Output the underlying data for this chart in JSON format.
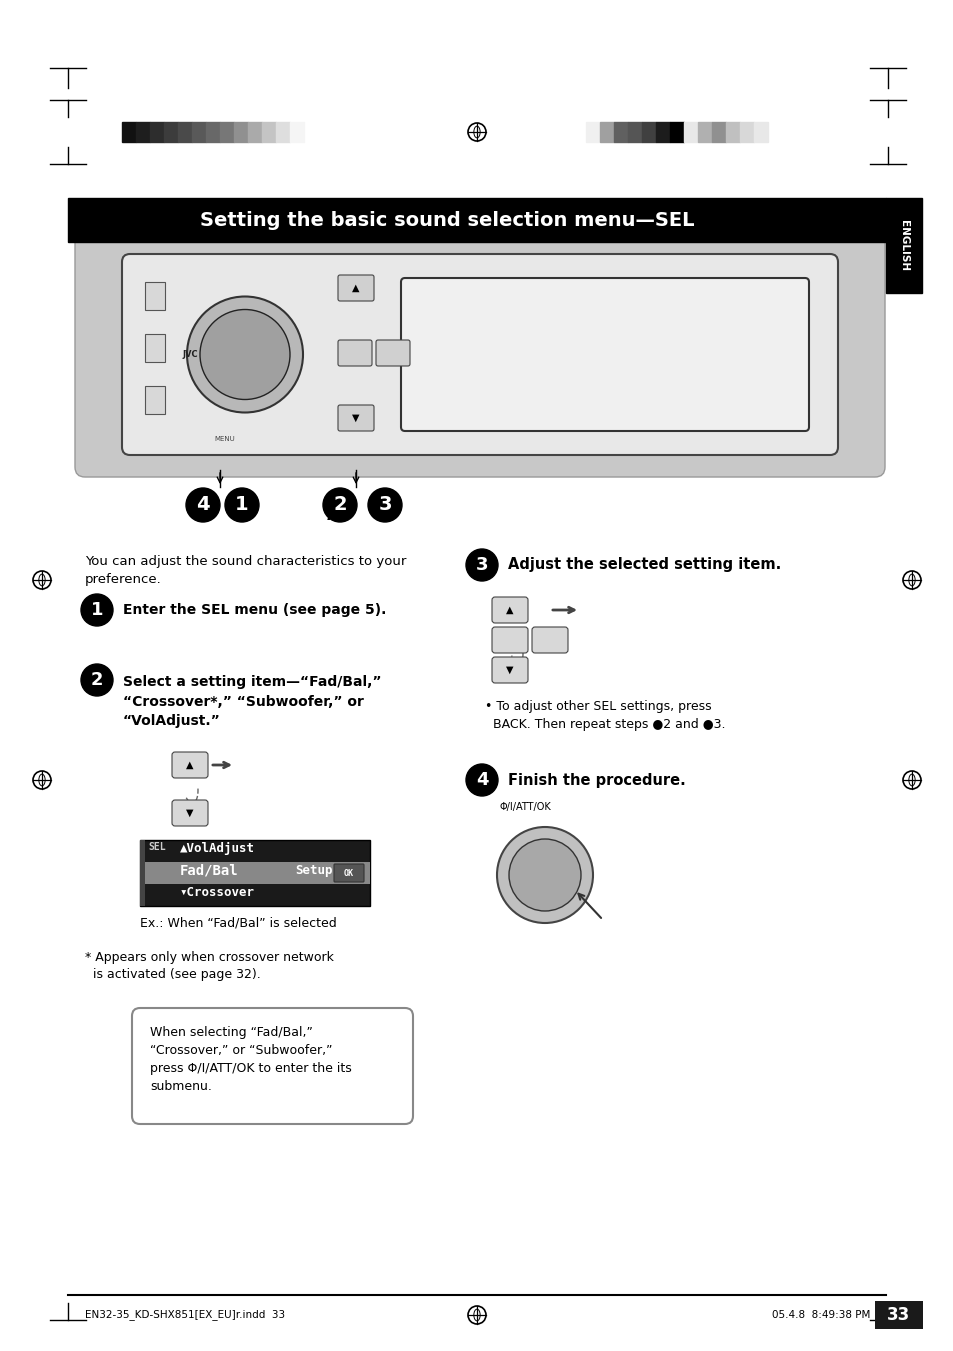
{
  "title": "Setting the basic sound selection menu—SEL",
  "title_fontsize": 14,
  "background_color": "#ffffff",
  "header_bar_color": "#000000",
  "header_text_color": "#ffffff",
  "english_tab_text": "ENGLISH",
  "step1_text": "Enter the SEL menu (see page 5).",
  "step2_text": "Select a setting item—“Fad/Bal,”\n“Crossover*,” “Subwoofer,” or\n“VolAdjust.”",
  "step3_header": "Adjust the selected setting item.",
  "step3_note": "• To adjust other SEL settings, press\n  BACK. Then repeat steps ●2 and ●3.",
  "step4_header": "Finish the procedure.",
  "intro_text": "You can adjust the sound characteristics to your\npreference.",
  "ex_text": "Ex.: When “Fad/Bal” is selected",
  "asterisk_text": "* Appears only when crossover network\n  is activated (see page 32).",
  "box_text": "When selecting “Fad/Bal,”\n“Crossover,” or “Subwoofer,”\npress Φ/I/ATT/OK to enter the its\nsubmenu.",
  "display_line1": "▲VolAdjust",
  "display_line2": "Fad/Bal",
  "display_setup": "Setup",
  "display_line3": "▾Crossover",
  "footer_left": "EN32-35_KD-SHX851[EX_EU]r.indd  33",
  "footer_right": "05.4.8  8:49:38 PM",
  "page_number": "33",
  "bar_colors_left": [
    "#111111",
    "#1e1e1e",
    "#2d2d2d",
    "#3c3c3c",
    "#4a4a4a",
    "#595959",
    "#686868",
    "#777777",
    "#909090",
    "#aaaaaa",
    "#c4c4c4",
    "#dedede",
    "#f5f5f5"
  ],
  "bar_colors_right": [
    "#f0f0f0",
    "#a0a0a0",
    "#606060",
    "#555555",
    "#404040",
    "#1c1c1c",
    "#000000",
    "#e8e8e8",
    "#b0b0b0",
    "#909090",
    "#c0c0c0",
    "#d8d8d8",
    "#e8e8e8"
  ]
}
